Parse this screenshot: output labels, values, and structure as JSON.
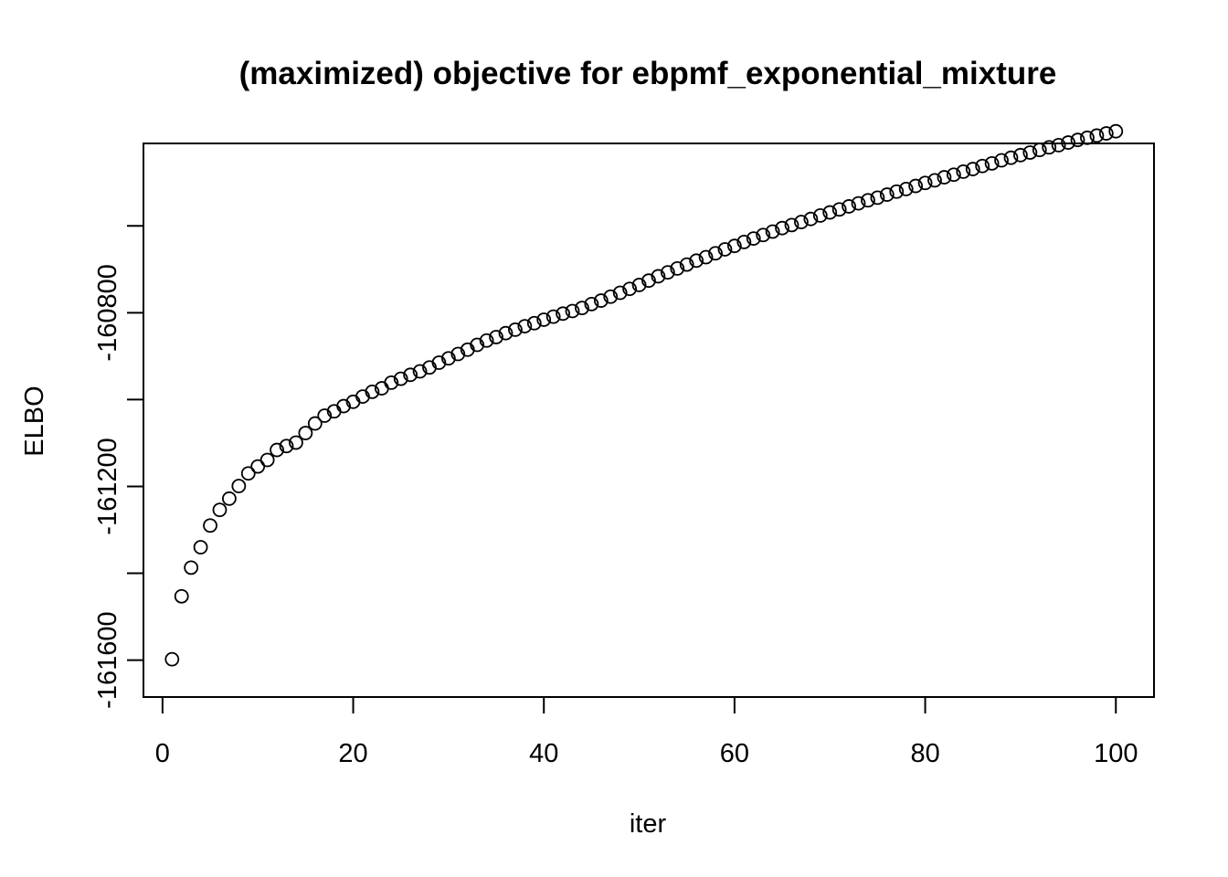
{
  "chart_data": {
    "type": "scatter",
    "title": "(maximized) objective for ebpmf_exponential_mixture",
    "xlabel": "iter",
    "ylabel": "ELBO",
    "xlim": [
      -2,
      104
    ],
    "ylim": [
      -161685,
      -160410
    ],
    "x_ticks": [
      0,
      20,
      40,
      60,
      80,
      100
    ],
    "x_tick_labels": [
      "0",
      "20",
      "40",
      "60",
      "80",
      "100"
    ],
    "y_ticks": [
      -161600,
      -161400,
      -161200,
      -161000,
      -160800,
      -160600
    ],
    "y_tick_labels": [
      "-161600",
      "",
      "-161200",
      "",
      "-160800",
      ""
    ],
    "grid": false,
    "marker": "open-circle",
    "x": [
      1,
      2,
      3,
      4,
      5,
      6,
      7,
      8,
      9,
      10,
      11,
      12,
      13,
      14,
      15,
      16,
      17,
      18,
      19,
      20,
      21,
      22,
      23,
      24,
      25,
      26,
      27,
      28,
      29,
      30,
      31,
      32,
      33,
      34,
      35,
      36,
      37,
      38,
      39,
      40,
      41,
      42,
      43,
      44,
      45,
      46,
      47,
      48,
      49,
      50,
      51,
      52,
      53,
      54,
      55,
      56,
      57,
      58,
      59,
      60,
      61,
      62,
      63,
      64,
      65,
      66,
      67,
      68,
      69,
      70,
      71,
      72,
      73,
      74,
      75,
      76,
      77,
      78,
      79,
      80,
      81,
      82,
      83,
      84,
      85,
      86,
      87,
      88,
      89,
      90,
      91,
      92,
      93,
      94,
      95,
      96,
      97,
      98,
      99,
      100
    ],
    "y": [
      -161598,
      -161453,
      -161387,
      -161340,
      -161290,
      -161254,
      -161228,
      -161199,
      -161170,
      -161154,
      -161139,
      -161116,
      -161107,
      -161099,
      -161077,
      -161055,
      -161037,
      -161027,
      -161015,
      -161005,
      -160993,
      -160982,
      -160974,
      -160961,
      -160952,
      -160943,
      -160935,
      -160926,
      -160915,
      -160905,
      -160895,
      -160885,
      -160874,
      -160864,
      -160856,
      -160847,
      -160839,
      -160831,
      -160824,
      -160816,
      -160809,
      -160802,
      -160796,
      -160789,
      -160780,
      -160772,
      -160763,
      -160754,
      -160745,
      -160736,
      -160726,
      -160716,
      -160707,
      -160698,
      -160689,
      -160680,
      -160672,
      -160663,
      -160654,
      -160646,
      -160637,
      -160629,
      -160621,
      -160613,
      -160605,
      -160598,
      -160591,
      -160584,
      -160576,
      -160569,
      -160562,
      -160555,
      -160548,
      -160541,
      -160535,
      -160528,
      -160521,
      -160515,
      -160508,
      -160501,
      -160495,
      -160488,
      -160482,
      -160475,
      -160469,
      -160462,
      -160456,
      -160449,
      -160443,
      -160437,
      -160431,
      -160425,
      -160419,
      -160414,
      -160408,
      -160402,
      -160397,
      -160392,
      -160387,
      -160382
    ]
  }
}
